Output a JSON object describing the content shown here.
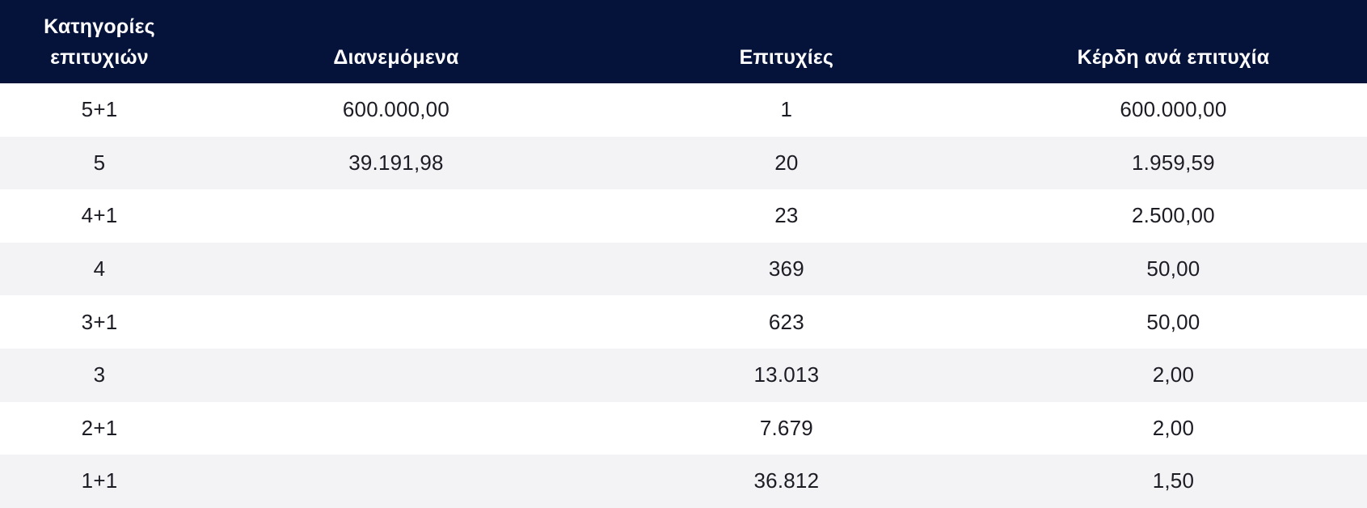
{
  "colors": {
    "header_bg": "#05123a",
    "header_text": "#ffffff",
    "row_bg_odd": "#ffffff",
    "row_bg_even": "#f3f3f5",
    "cell_text": "#1c1c24"
  },
  "table": {
    "headers": [
      "Κατηγορίες επιτυχιών",
      "Διανεμόμενα",
      "Επιτυχίες",
      "Κέρδη ανά επιτυχία"
    ],
    "rows": [
      {
        "category": "5+1",
        "distributed": "600.000,00",
        "winners": "1",
        "prize_per_winner": "600.000,00"
      },
      {
        "category": "5",
        "distributed": "39.191,98",
        "winners": "20",
        "prize_per_winner": "1.959,59"
      },
      {
        "category": "4+1",
        "distributed": "",
        "winners": "23",
        "prize_per_winner": "2.500,00"
      },
      {
        "category": "4",
        "distributed": "",
        "winners": "369",
        "prize_per_winner": "50,00"
      },
      {
        "category": "3+1",
        "distributed": "",
        "winners": "623",
        "prize_per_winner": "50,00"
      },
      {
        "category": "3",
        "distributed": "",
        "winners": "13.013",
        "prize_per_winner": "2,00"
      },
      {
        "category": "2+1",
        "distributed": "",
        "winners": "7.679",
        "prize_per_winner": "2,00"
      },
      {
        "category": "1+1",
        "distributed": "",
        "winners": "36.812",
        "prize_per_winner": "1,50"
      }
    ]
  }
}
